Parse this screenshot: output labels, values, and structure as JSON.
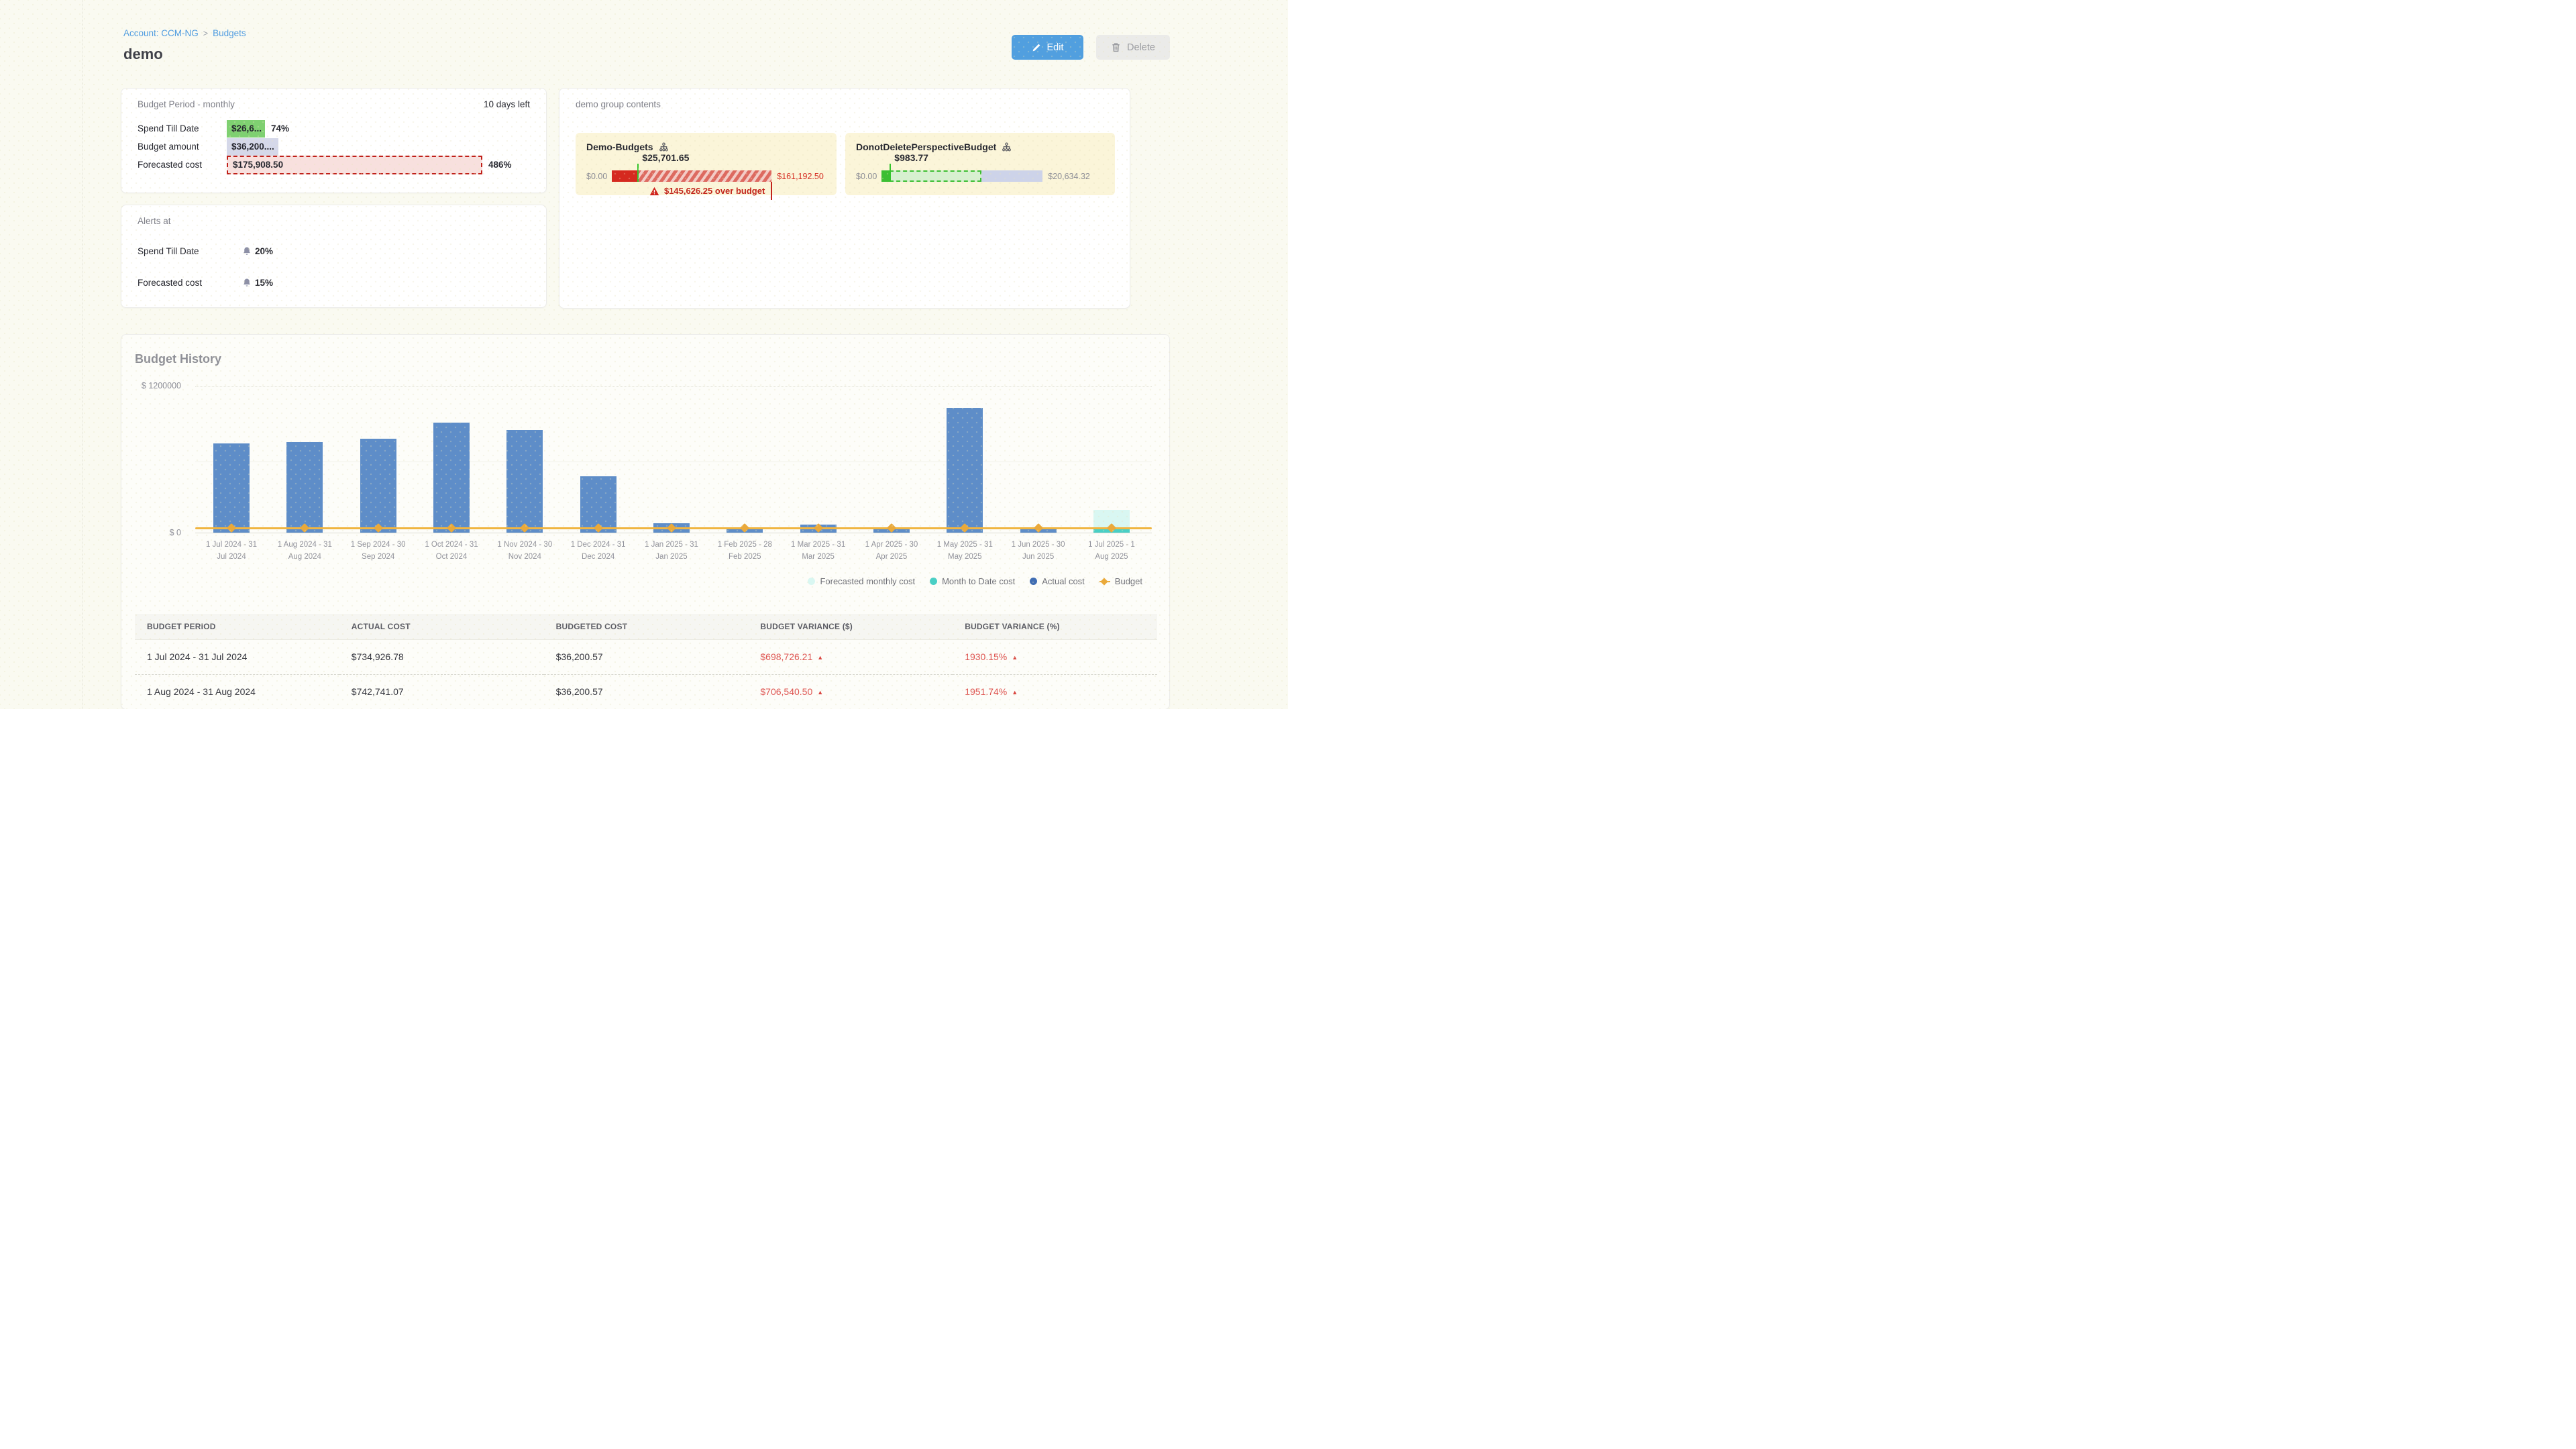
{
  "header": {
    "breadcrumb": {
      "account_link": "Account: CCM-NG",
      "separator": ">",
      "section_link": "Budgets"
    },
    "title": "demo",
    "edit_button": "Edit",
    "delete_button": "Delete"
  },
  "budget_period_card": {
    "title": "Budget Period - monthly",
    "days_left": "10 days left",
    "spend_till_date": {
      "label": "Spend Till Date",
      "value": "$26,6...",
      "percent": "74%"
    },
    "budget_amount": {
      "label": "Budget amount",
      "value": "$36,200...."
    },
    "forecasted_cost": {
      "label": "Forecasted cost",
      "value": "$175,908.50",
      "percent": "486%"
    }
  },
  "alerts_card": {
    "title": "Alerts at",
    "spend_till_date": {
      "label": "Spend Till Date",
      "value": "20%"
    },
    "forecasted_cost": {
      "label": "Forecasted cost",
      "value": "15%"
    }
  },
  "group_card": {
    "title": "demo group contents",
    "budgets": [
      {
        "name": "Demo-Budgets",
        "range_start": "$0.00",
        "actual": "$25,701.65",
        "range_end": "$161,192.50",
        "over_budget": "$145,626.25 over budget"
      },
      {
        "name": "DonotDeletePerspectiveBudget",
        "range_start": "$0.00",
        "actual": "$983.77",
        "range_end": "$20,634.32"
      }
    ]
  },
  "chart_data": {
    "type": "bar",
    "title": "Budget History",
    "ylim": [
      0,
      1200000
    ],
    "y_axis_labels": {
      "top": "$ 1200000",
      "zero": "$ 0"
    },
    "grid": "horizontal",
    "legend_position": "bottom-right",
    "categories": [
      "1 Jul 2024 - 31 Jul 2024",
      "1 Aug 2024 - 31 Aug 2024",
      "1 Sep 2024 - 30 Sep 2024",
      "1 Oct 2024 - 31 Oct 2024",
      "1 Nov 2024 - 30 Nov 2024",
      "1 Dec 2024 - 31 Dec 2024",
      "1 Jan 2025 - 31 Jan 2025",
      "1 Feb 2025 - 28 Feb 2025",
      "1 Mar 2025 - 31 Mar 2025",
      "1 Apr 2025 - 30 Apr 2025",
      "1 May 2025 - 31 May 2025",
      "1 Jun 2025 - 30 Jun 2025",
      "1 Jul 2025 - 1 Aug 2025"
    ],
    "series": [
      {
        "name": "Actual cost",
        "type": "column",
        "color": "#5e8dc8",
        "values": [
          734926.78,
          742741.07,
          770000,
          905000,
          845000,
          460000,
          80000,
          35000,
          65000,
          35000,
          1025000,
          35000,
          0
        ]
      },
      {
        "name": "Forecasted monthly cost",
        "type": "column",
        "color": "#d9f7f2",
        "values": [
          0,
          0,
          0,
          0,
          0,
          0,
          0,
          0,
          0,
          0,
          0,
          0,
          185000
        ]
      },
      {
        "name": "Month to Date cost",
        "type": "column",
        "color": "#49cfc5",
        "values": [
          0,
          0,
          0,
          0,
          0,
          0,
          0,
          0,
          0,
          0,
          0,
          0,
          28000
        ]
      },
      {
        "name": "Budget",
        "type": "line",
        "color": "#efb440",
        "values": [
          36200.57,
          36200.57,
          36200.57,
          36200.57,
          36200.57,
          36200.57,
          36200.57,
          36200.57,
          36200.57,
          36200.57,
          36200.57,
          36200.57,
          36200.57
        ]
      }
    ],
    "legend": [
      {
        "label": "Forecasted monthly cost",
        "color": "#d9f7f2",
        "marker": "circle"
      },
      {
        "label": "Month to Date cost",
        "color": "#49cfc5",
        "marker": "circle"
      },
      {
        "label": "Actual cost",
        "color": "#3f6db3",
        "marker": "circle"
      },
      {
        "label": "Budget",
        "color": "#eaa93a",
        "marker": "diamond"
      }
    ]
  },
  "history_table": {
    "headers": [
      "BUDGET PERIOD",
      "ACTUAL COST",
      "BUDGETED COST",
      "BUDGET VARIANCE ($)",
      "BUDGET VARIANCE (%)"
    ],
    "rows": [
      {
        "period": "1 Jul 2024 - 31 Jul 2024",
        "actual_cost": "$734,926.78",
        "budgeted_cost": "$36,200.57",
        "variance_usd": "$698,726.21",
        "variance_pct": "1930.15%",
        "variance_direction": "up"
      },
      {
        "period": "1 Aug 2024 - 31 Aug 2024",
        "actual_cost": "$742,741.07",
        "budgeted_cost": "$36,200.57",
        "variance_usd": "$706,540.50",
        "variance_pct": "1951.74%",
        "variance_direction": "up"
      }
    ]
  }
}
